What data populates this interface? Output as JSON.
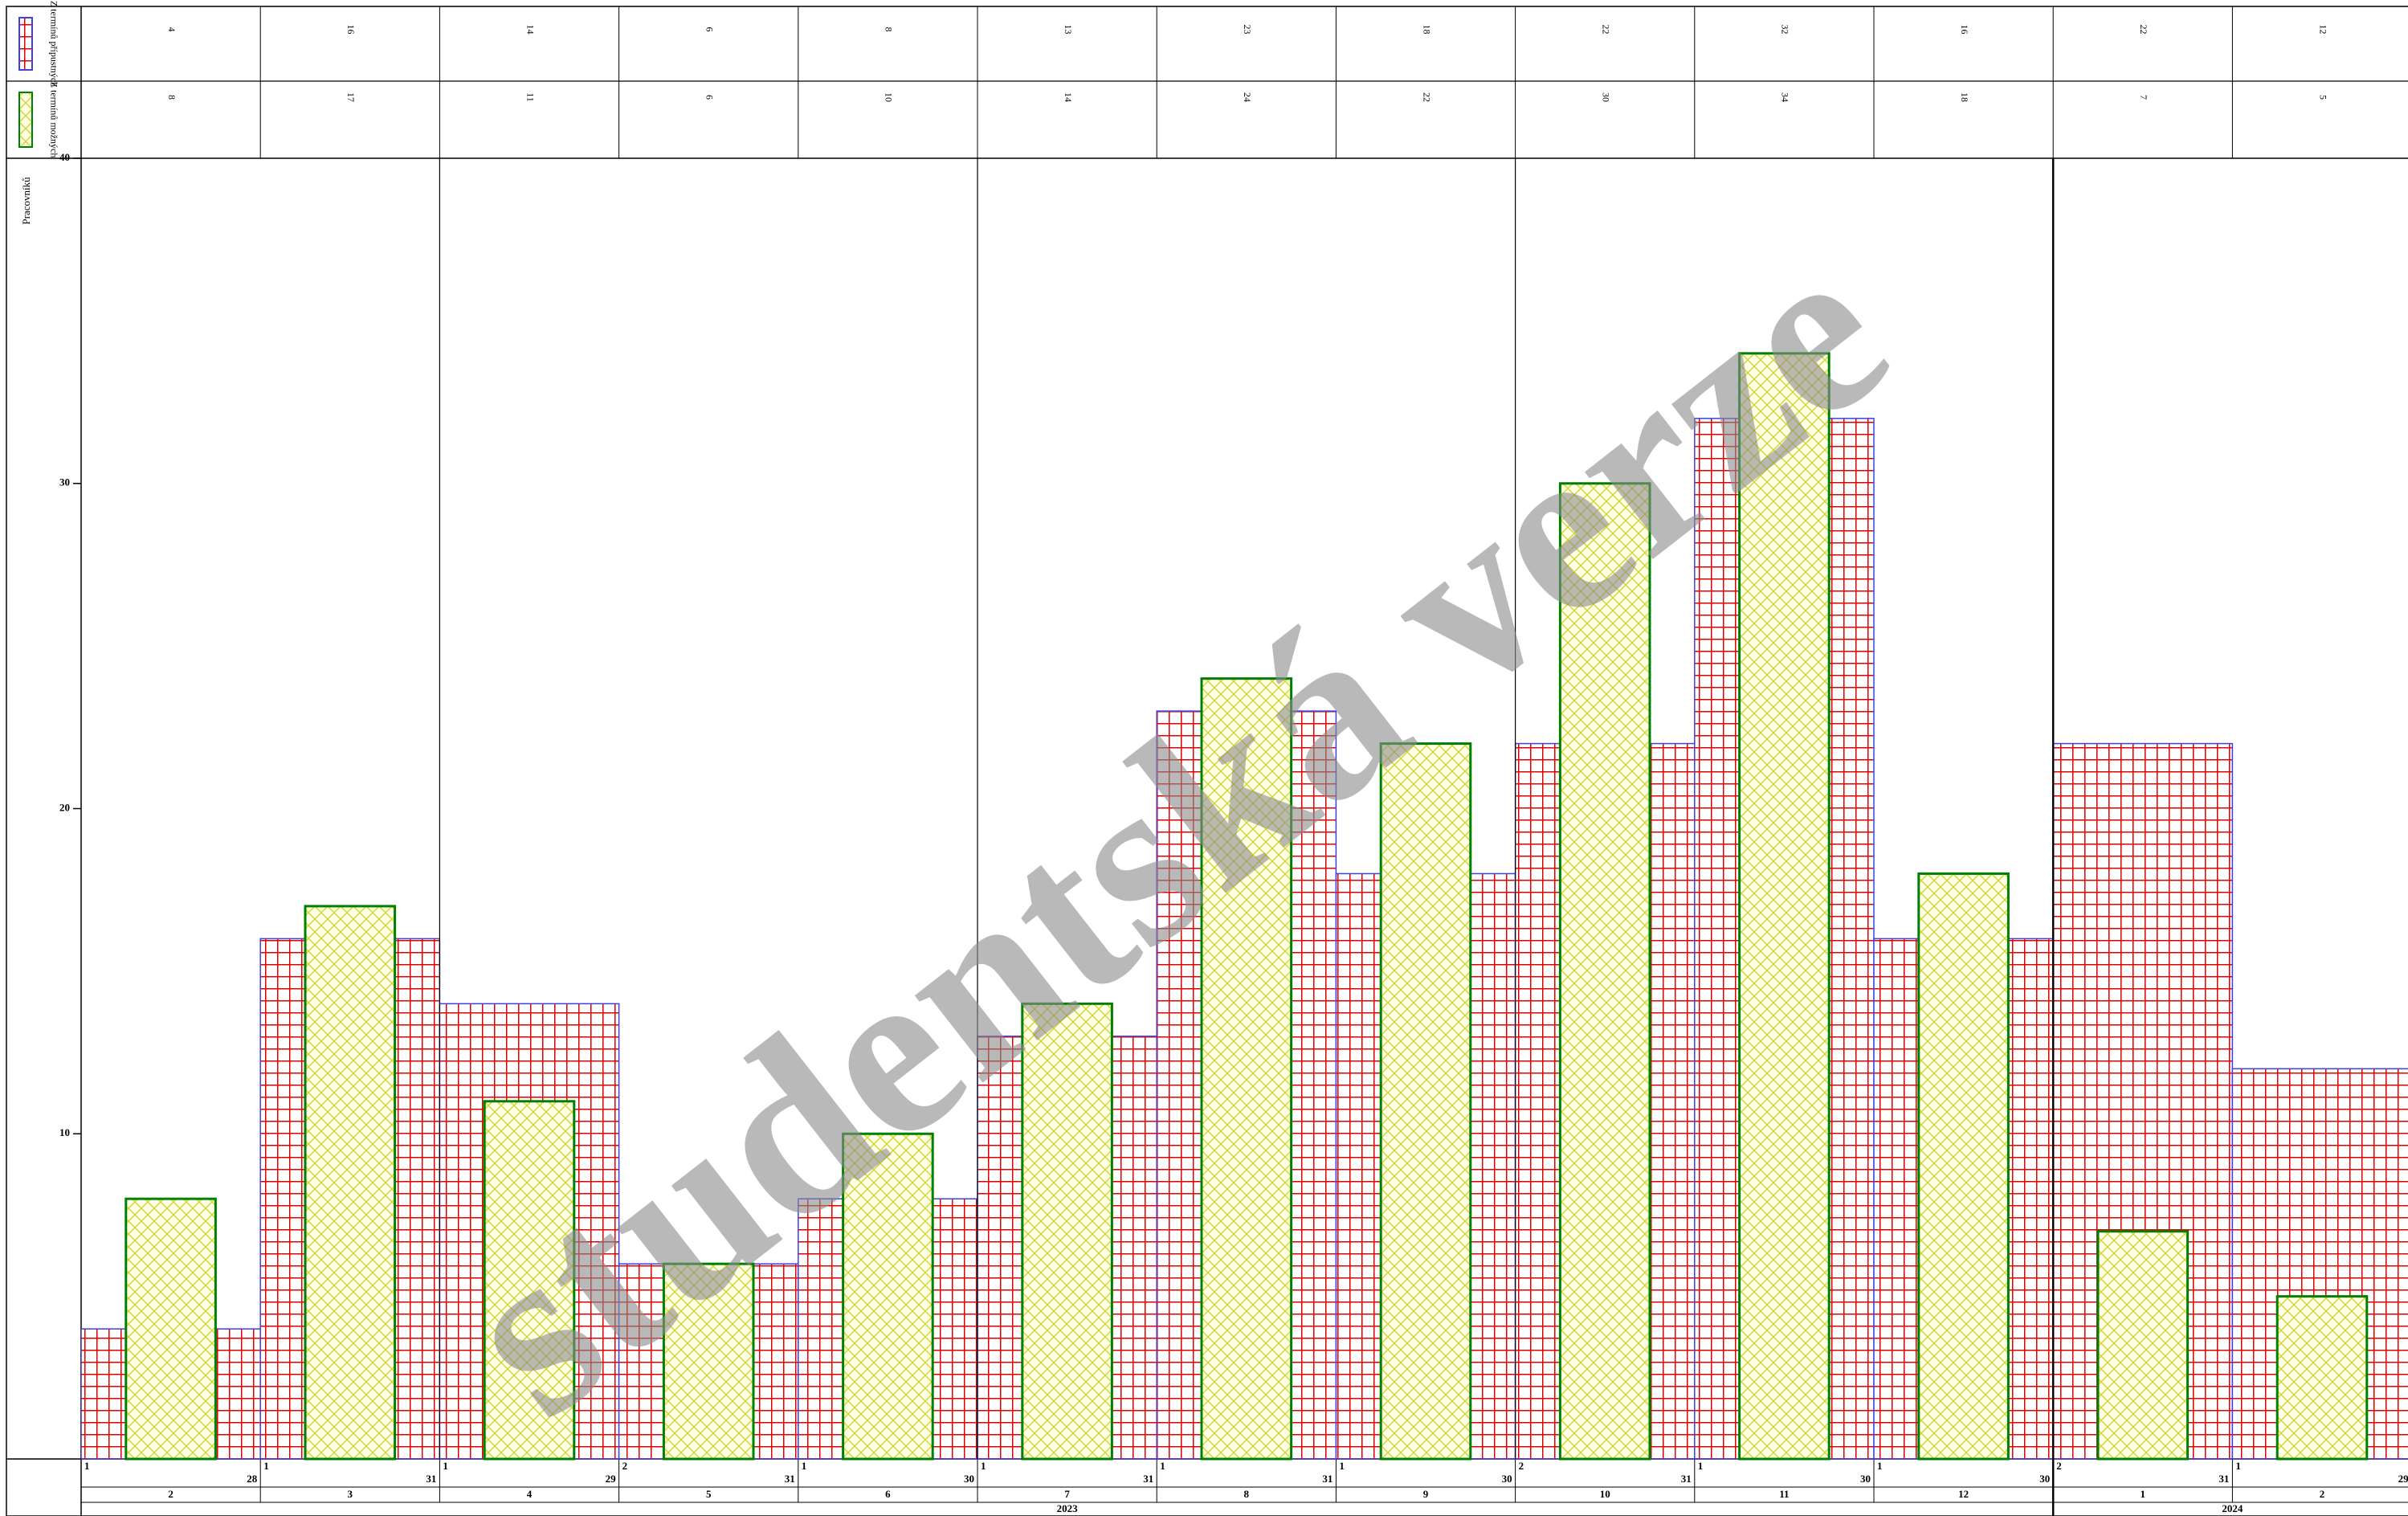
{
  "chart_data": {
    "type": "bar",
    "y_label": "Pracovníků",
    "watermark": "studentská verze",
    "categories": [
      "2",
      "3",
      "4",
      "5",
      "6",
      "7",
      "8",
      "9",
      "10",
      "11",
      "12",
      "1",
      "2"
    ],
    "category_years": [
      "2023",
      "2023",
      "2023",
      "2023",
      "2023",
      "2023",
      "2023",
      "2023",
      "2023",
      "2023",
      "2023",
      "2024",
      "2024"
    ],
    "start_days": [
      "1",
      "1",
      "1",
      "2",
      "1",
      "1",
      "1",
      "1",
      "2",
      "1",
      "1",
      "2",
      "1"
    ],
    "end_days": [
      "28",
      "31",
      "29",
      "31",
      "30",
      "31",
      "31",
      "30",
      "31",
      "30",
      "30",
      "31",
      "29"
    ],
    "series": [
      {
        "name": "Z termínů přípustných",
        "color": "#e00000",
        "values": [
          4,
          16,
          14,
          6,
          8,
          13,
          23,
          18,
          22,
          32,
          16,
          22,
          12
        ]
      },
      {
        "name": "Z termínů možných",
        "color": "#008000",
        "values": [
          8,
          17,
          11,
          6,
          10,
          14,
          24,
          22,
          30,
          34,
          18,
          7,
          5
        ]
      }
    ],
    "ylim": [
      0,
      40
    ],
    "yticks": [
      10,
      20,
      30,
      40
    ]
  }
}
